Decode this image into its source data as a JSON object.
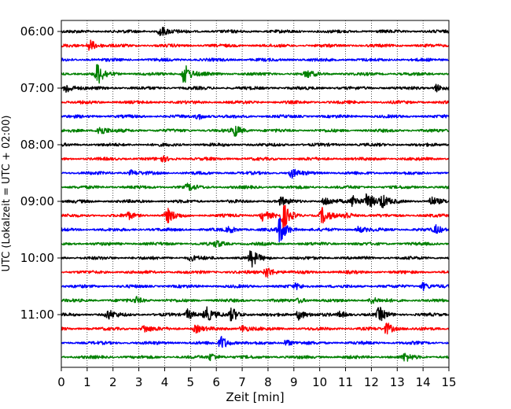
{
  "chart_data": {
    "type": "line",
    "title": "",
    "xlabel": "Zeit  [min]",
    "ylabel": "UTC (Lokalzeit = UTC + 02:00)",
    "xlim": [
      0,
      15
    ],
    "x_ticks": [
      "0",
      "1",
      "2",
      "3",
      "4",
      "5",
      "6",
      "7",
      "8",
      "9",
      "10",
      "11",
      "12",
      "13",
      "14",
      "15"
    ],
    "y_tick_labels": [
      "06:00",
      "07:00",
      "08:00",
      "09:00",
      "10:00",
      "11:00"
    ],
    "trace_interval_min": 15,
    "start_time_utc": "06:00",
    "grid": "vertical-dotted",
    "series": [
      {
        "time": "06:00",
        "color": "#000000",
        "events": [
          {
            "t": 3.85,
            "a": 7
          }
        ]
      },
      {
        "time": "06:15",
        "color": "#ff0000",
        "events": [
          {
            "t": 1.1,
            "a": 8
          }
        ]
      },
      {
        "time": "06:30",
        "color": "#0000ff",
        "events": []
      },
      {
        "time": "06:45",
        "color": "#008000",
        "events": [
          {
            "t": 1.4,
            "a": 14
          },
          {
            "t": 4.75,
            "a": 14
          },
          {
            "t": 9.5,
            "a": 4
          }
        ]
      },
      {
        "time": "07:00",
        "color": "#000000",
        "events": [
          {
            "t": 0.2,
            "a": 7
          },
          {
            "t": 14.5,
            "a": 5
          }
        ]
      },
      {
        "time": "07:15",
        "color": "#ff0000",
        "events": []
      },
      {
        "time": "07:30",
        "color": "#0000ff",
        "events": [
          {
            "t": 5.3,
            "a": 4
          }
        ]
      },
      {
        "time": "07:45",
        "color": "#008000",
        "events": [
          {
            "t": 1.45,
            "a": 8
          },
          {
            "t": 6.7,
            "a": 8
          }
        ]
      },
      {
        "time": "08:00",
        "color": "#000000",
        "events": []
      },
      {
        "time": "08:15",
        "color": "#ff0000",
        "events": [
          {
            "t": 3.9,
            "a": 3
          }
        ]
      },
      {
        "time": "08:30",
        "color": "#0000ff",
        "events": [
          {
            "t": 8.9,
            "a": 6
          },
          {
            "t": 2.7,
            "a": 3
          }
        ]
      },
      {
        "time": "08:45",
        "color": "#008000",
        "events": [
          {
            "t": 4.9,
            "a": 4
          }
        ]
      },
      {
        "time": "09:00",
        "color": "#000000",
        "events": [
          {
            "t": 8.5,
            "a": 5
          },
          {
            "t": 10.2,
            "a": 6
          },
          {
            "t": 11.3,
            "a": 8
          },
          {
            "t": 11.85,
            "a": 12
          },
          {
            "t": 12.4,
            "a": 8
          },
          {
            "t": 14.3,
            "a": 6
          }
        ]
      },
      {
        "time": "09:15",
        "color": "#ff0000",
        "events": [
          {
            "t": 4.1,
            "a": 9
          },
          {
            "t": 7.8,
            "a": 7
          },
          {
            "t": 8.6,
            "a": 16
          },
          {
            "t": 10.1,
            "a": 10
          },
          {
            "t": 11.0,
            "a": 5
          },
          {
            "t": 2.6,
            "a": 4
          }
        ]
      },
      {
        "time": "09:30",
        "color": "#0000ff",
        "events": [
          {
            "t": 8.45,
            "a": 18
          },
          {
            "t": 6.5,
            "a": 4
          },
          {
            "t": 11.5,
            "a": 4
          },
          {
            "t": 14.5,
            "a": 5
          }
        ]
      },
      {
        "time": "09:45",
        "color": "#008000",
        "events": [
          {
            "t": 6.0,
            "a": 4
          }
        ]
      },
      {
        "time": "10:00",
        "color": "#000000",
        "events": [
          {
            "t": 7.35,
            "a": 11
          },
          {
            "t": 5.0,
            "a": 3
          }
        ]
      },
      {
        "time": "10:15",
        "color": "#ff0000",
        "events": [
          {
            "t": 7.95,
            "a": 8
          }
        ]
      },
      {
        "time": "10:30",
        "color": "#0000ff",
        "events": [
          {
            "t": 14.0,
            "a": 5
          },
          {
            "t": 9.1,
            "a": 3
          }
        ]
      },
      {
        "time": "10:45",
        "color": "#008000",
        "events": [
          {
            "t": 2.9,
            "a": 4
          },
          {
            "t": 12.0,
            "a": 4
          },
          {
            "t": 9.2,
            "a": 3
          }
        ]
      },
      {
        "time": "11:00",
        "color": "#000000",
        "events": [
          {
            "t": 1.8,
            "a": 6
          },
          {
            "t": 4.9,
            "a": 7
          },
          {
            "t": 5.6,
            "a": 10
          },
          {
            "t": 6.6,
            "a": 9
          },
          {
            "t": 9.2,
            "a": 7
          },
          {
            "t": 12.3,
            "a": 9
          },
          {
            "t": 10.8,
            "a": 4
          }
        ]
      },
      {
        "time": "11:15",
        "color": "#ff0000",
        "events": [
          {
            "t": 3.2,
            "a": 5
          },
          {
            "t": 5.2,
            "a": 5
          },
          {
            "t": 7.0,
            "a": 5
          },
          {
            "t": 12.6,
            "a": 8
          }
        ]
      },
      {
        "time": "11:30",
        "color": "#0000ff",
        "events": [
          {
            "t": 6.2,
            "a": 9
          },
          {
            "t": 8.7,
            "a": 4
          }
        ]
      },
      {
        "time": "11:45",
        "color": "#008000",
        "events": [
          {
            "t": 5.8,
            "a": 5
          },
          {
            "t": 13.3,
            "a": 5
          }
        ]
      }
    ]
  }
}
